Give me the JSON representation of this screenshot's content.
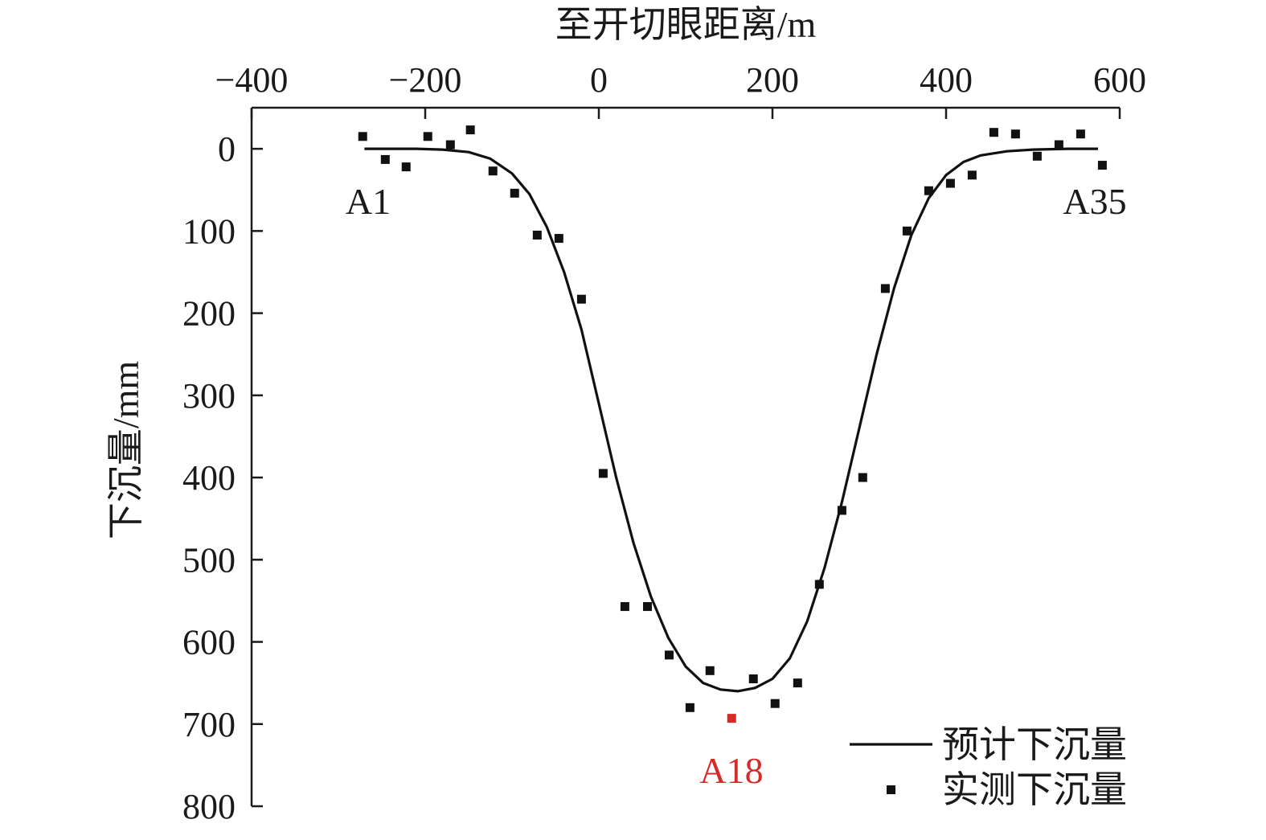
{
  "chart_data": {
    "type": "scatter",
    "xlabel": "至开切眼距离/m",
    "ylabel": "下沉量/mm",
    "x_axis_position": "top",
    "y_axis_inverted": true,
    "xlim": [
      -400,
      600
    ],
    "ylim": [
      -50,
      800
    ],
    "x_ticks": [
      -400,
      -200,
      0,
      200,
      400,
      600
    ],
    "x_tick_labels": [
      "−400",
      "−200",
      "0",
      "200",
      "400",
      "600"
    ],
    "y_ticks": [
      0,
      100,
      200,
      300,
      400,
      500,
      600,
      700,
      800
    ],
    "y_tick_labels": [
      "0",
      "100",
      "200",
      "300",
      "400",
      "500",
      "600",
      "700",
      "800"
    ],
    "grid": false,
    "legend_position": "bottom-right",
    "series": [
      {
        "name": "预计下沉量",
        "kind": "line",
        "color": "#111111",
        "x": [
          -270,
          -240,
          -210,
          -180,
          -150,
          -125,
          -100,
          -80,
          -60,
          -40,
          -20,
          0,
          20,
          40,
          60,
          80,
          100,
          120,
          140,
          160,
          180,
          200,
          220,
          240,
          260,
          280,
          300,
          320,
          340,
          360,
          380,
          400,
          420,
          440,
          470,
          500,
          540,
          575
        ],
        "y": [
          0,
          0,
          0,
          1,
          4,
          12,
          30,
          55,
          95,
          150,
          220,
          310,
          400,
          480,
          545,
          595,
          630,
          650,
          658,
          660,
          656,
          645,
          620,
          575,
          510,
          430,
          340,
          250,
          170,
          105,
          60,
          32,
          16,
          8,
          3,
          1,
          0,
          0
        ]
      },
      {
        "name": "实测下沉量",
        "kind": "scatter",
        "color": "#111111",
        "highlight_color": "#d62a2a",
        "x": [
          -272,
          -246,
          -222,
          -197,
          -171,
          -148,
          -122,
          -97,
          -71,
          -46,
          -20,
          5,
          30,
          56,
          81,
          105,
          128,
          153,
          178,
          203,
          229,
          254,
          280,
          304,
          330,
          355,
          380,
          405,
          430,
          455,
          480,
          505,
          530,
          555,
          580
        ],
        "y": [
          -15,
          13,
          22,
          -15,
          -5,
          -23,
          27,
          54,
          105,
          109,
          183,
          395,
          557,
          557,
          616,
          680,
          635,
          693,
          645,
          675,
          650,
          530,
          440,
          400,
          170,
          100,
          51,
          42,
          32,
          -20,
          -18,
          9,
          -5,
          -18,
          20
        ]
      }
    ],
    "annotations": [
      {
        "text": "A1",
        "color": "#111111"
      },
      {
        "text": "A18",
        "color": "#d62a2a"
      },
      {
        "text": "A35",
        "color": "#111111"
      }
    ]
  }
}
